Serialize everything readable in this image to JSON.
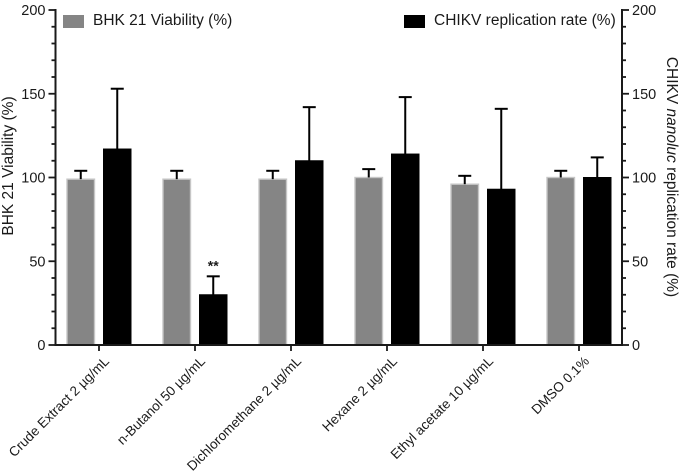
{
  "chart_data": {
    "type": "bar",
    "title": "",
    "categories": [
      "Crude Extract 2 µg/mL",
      "n-Butanol 50 µg/mL",
      "Dichloromethane 2 µg/mL",
      "Hexane 2 µg/mL",
      "Ethyl acetate 10 µg/mL",
      "DMSO 0.1%"
    ],
    "series": [
      {
        "name": "BHK 21 Viability (%)",
        "color": "#858585",
        "border": "#c6c6c6",
        "values": [
          99,
          99,
          99,
          100,
          96,
          100
        ],
        "errors_up": [
          5,
          5,
          5,
          5,
          5,
          4
        ]
      },
      {
        "name": "CHIKV replication rate (%)",
        "color": "#000000",
        "border": "#000000",
        "values": [
          117,
          30,
          110,
          114,
          93,
          100
        ],
        "errors_up": [
          36,
          11,
          32,
          34,
          48,
          12
        ]
      }
    ],
    "annotations": [
      {
        "text": "**",
        "series": 1,
        "category": 1
      }
    ],
    "left_ylabel": "BHK 21 Viability (%)",
    "right_ylabel": "CHIKV nanoluc replication rate (%)",
    "right_ylabel_parts": {
      "prefix": "CHIKV ",
      "italic": "nanoluc",
      "suffix": " replication rate (%)"
    },
    "y_axis": {
      "min": 0,
      "max": 200,
      "major_ticks": [
        0,
        50,
        100,
        150,
        200
      ],
      "minor_step": 10
    },
    "tick_labels": [
      "0",
      "50",
      "100",
      "150",
      "200"
    ],
    "legend_position": "top",
    "grid": false,
    "error_bar_color": "#000000",
    "axis_color": "#1a1a1a"
  }
}
